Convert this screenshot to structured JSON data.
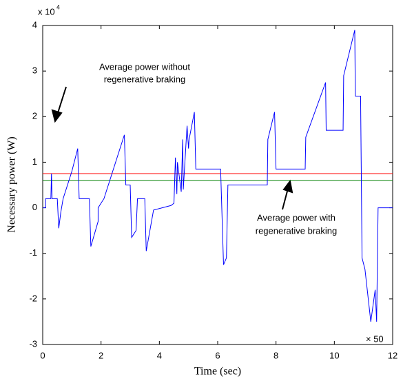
{
  "chart_data": {
    "type": "line",
    "ylabel": "Necessary power (W)",
    "xlabel": "Time (sec)",
    "y_multiplier": {
      "base": "x 10",
      "exponent": "4"
    },
    "x_multiplier": "× 50",
    "xlim": [
      0,
      12
    ],
    "xticks": [
      0,
      2,
      4,
      6,
      8,
      10,
      12
    ],
    "ylim": [
      -3,
      4
    ],
    "yticks": [
      -3,
      -2,
      -1,
      0,
      1,
      2,
      3,
      4
    ],
    "x": [
      0,
      0.1,
      0.1,
      0.28,
      0.3,
      0.32,
      0.5,
      0.55,
      0.62,
      0.7,
      1.0,
      1.2,
      1.25,
      1.6,
      1.65,
      1.9,
      1.9,
      2.1,
      2.8,
      2.85,
      3.0,
      3.05,
      3.2,
      3.25,
      3.5,
      3.55,
      3.8,
      4.4,
      4.5,
      4.55,
      4.6,
      4.62,
      4.75,
      4.8,
      4.82,
      4.95,
      5.0,
      5.02,
      5.2,
      5.25,
      6.1,
      6.2,
      6.3,
      6.35,
      7.7,
      7.72,
      7.95,
      8.0,
      9.0,
      9.02,
      9.7,
      9.72,
      10.3,
      10.32,
      10.7,
      10.72,
      10.9,
      10.95,
      11.05,
      11.25,
      11.4,
      11.45,
      11.5,
      12
    ],
    "series": [
      {
        "name": "Necessary power",
        "color": "#0000ff",
        "values": [
          0,
          0,
          0.2,
          0.2,
          0.75,
          0.2,
          0.2,
          -0.45,
          -0.1,
          0.2,
          0.8,
          1.3,
          0.2,
          0.2,
          -0.85,
          -0.3,
          0,
          0.2,
          1.6,
          0.5,
          0.5,
          -0.65,
          -0.5,
          0.2,
          0.2,
          -0.95,
          -0.05,
          0.05,
          0.1,
          1.1,
          0.3,
          1.0,
          0.35,
          1.5,
          0.4,
          1.8,
          1.3,
          1.5,
          2.1,
          0.85,
          0.85,
          -1.25,
          -1.1,
          0.5,
          0.5,
          1.5,
          2.1,
          0.85,
          0.85,
          1.55,
          2.75,
          1.7,
          1.7,
          2.9,
          3.9,
          2.45,
          2.45,
          -1.1,
          -1.35,
          -2.5,
          -1.8,
          -2.5,
          0,
          0
        ]
      }
    ],
    "hlines": [
      {
        "value": 0.75,
        "color": "#ff0000"
      },
      {
        "value": 0.6,
        "color": "#008000"
      }
    ],
    "annotations": [
      {
        "lines": [
          "Average power without",
          "regenerative braking"
        ],
        "color": "#ff0000"
      },
      {
        "lines": [
          "Average power with",
          "regenerative braking"
        ],
        "color": "#008000"
      }
    ]
  }
}
